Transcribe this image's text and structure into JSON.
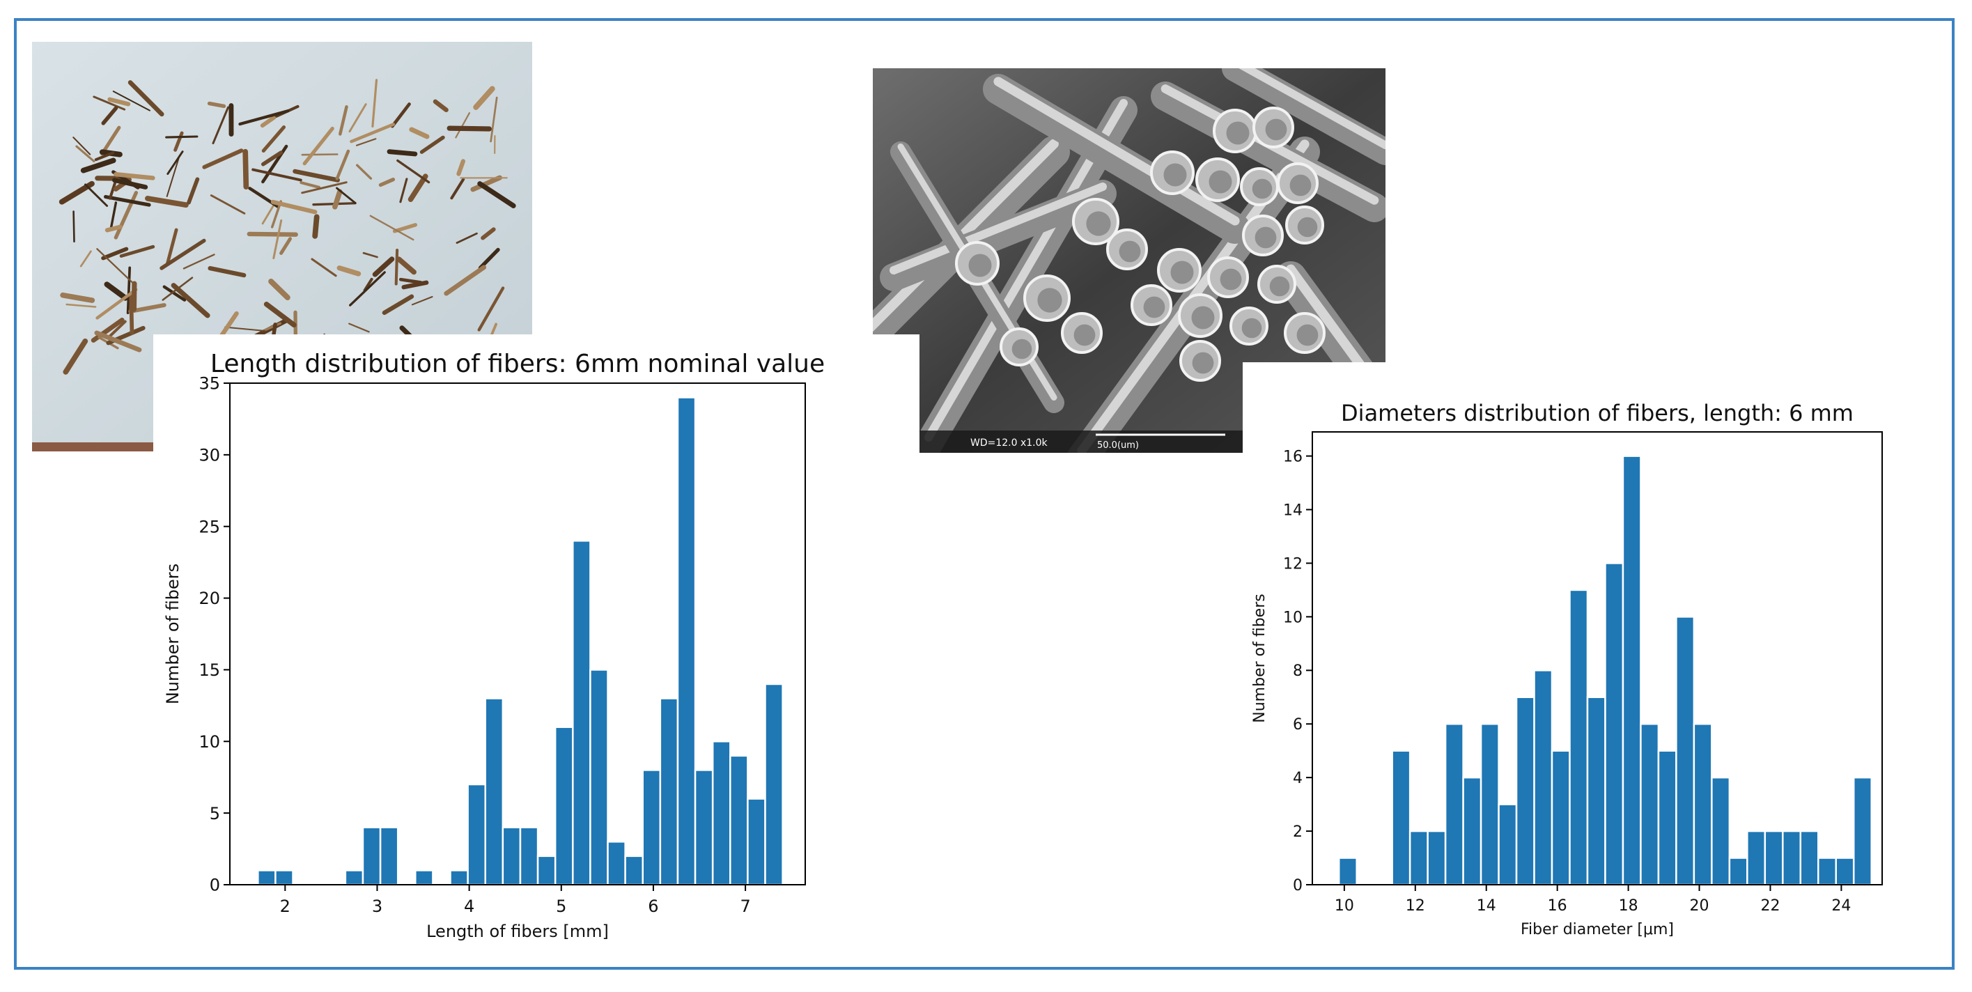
{
  "sem": {
    "readout": "WD=12.0   x1.0k",
    "scale_label": "50.0(um)"
  },
  "chart_data": [
    {
      "type": "bar",
      "title": "Length distribution of fibers: 6mm nominal value",
      "xlabel": "Length of fibers [mm]",
      "ylabel": "Number of fibers",
      "x": [
        1.8,
        1.99,
        2.75,
        2.94,
        3.13,
        3.51,
        3.89,
        4.08,
        4.27,
        4.46,
        4.65,
        4.84,
        5.03,
        5.22,
        5.41,
        5.6,
        5.79,
        5.98,
        6.17,
        6.36,
        6.55,
        6.74,
        6.93,
        7.12,
        7.31
      ],
      "values": [
        1,
        1,
        1,
        4,
        4,
        1,
        1,
        7,
        13,
        4,
        4,
        2,
        11,
        24,
        15,
        3,
        2,
        8,
        13,
        34,
        8,
        10,
        9,
        6,
        14
      ],
      "bin_width": 0.19,
      "xlim": [
        1.4,
        7.65
      ],
      "ylim": [
        0,
        35
      ],
      "xticks": [
        "2",
        "3",
        "4",
        "5",
        "6",
        "7"
      ],
      "yticks": [
        "0",
        "5",
        "10",
        "15",
        "20",
        "25",
        "30",
        "35"
      ],
      "color": "#1f77b4",
      "grid": false
    },
    {
      "type": "bar",
      "title": "Diameters distribution of fibers, length: 6 mm",
      "xlabel": "Fiber diameter [μm]",
      "ylabel": "Number of fibers",
      "x": [
        10.1,
        11.6,
        12.1,
        12.6,
        13.1,
        13.6,
        14.1,
        14.6,
        15.1,
        15.6,
        16.1,
        16.6,
        17.1,
        17.6,
        18.1,
        18.6,
        19.1,
        19.6,
        20.1,
        20.6,
        21.1,
        21.6,
        22.1,
        22.6,
        23.1,
        23.6,
        24.1,
        24.6
      ],
      "values": [
        1,
        5,
        2,
        2,
        6,
        4,
        6,
        3,
        7,
        8,
        5,
        11,
        7,
        12,
        16,
        6,
        5,
        10,
        6,
        4,
        1,
        2,
        2,
        2,
        2,
        1,
        1,
        4
      ],
      "bin_width": 0.5,
      "xlim": [
        9.1,
        25.15
      ],
      "ylim": [
        0,
        16.9
      ],
      "xticks": [
        "10",
        "12",
        "14",
        "16",
        "18",
        "20",
        "22",
        "24"
      ],
      "yticks": [
        "0",
        "2",
        "4",
        "6",
        "8",
        "10",
        "12",
        "14",
        "16"
      ],
      "color": "#1f77b4",
      "grid": false
    }
  ]
}
